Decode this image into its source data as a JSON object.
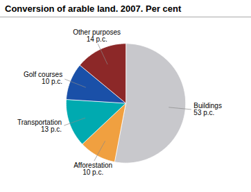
{
  "chart_data": {
    "type": "pie",
    "title": "Conversion of arable land. 2007. Per cent",
    "categories": [
      "Buildings",
      "Afforestation",
      "Transportation",
      "Golf courses",
      "Other purposes"
    ],
    "values": [
      53,
      10,
      13,
      10,
      14
    ],
    "value_labels": [
      "53 p.c.",
      "10 p.c.",
      "13 p.c.",
      "10 p.c.",
      "14 p.c."
    ],
    "colors": [
      "#c8c8cc",
      "#f0a040",
      "#00aab0",
      "#1a50a8",
      "#8c2828"
    ],
    "data_labels": true
  }
}
